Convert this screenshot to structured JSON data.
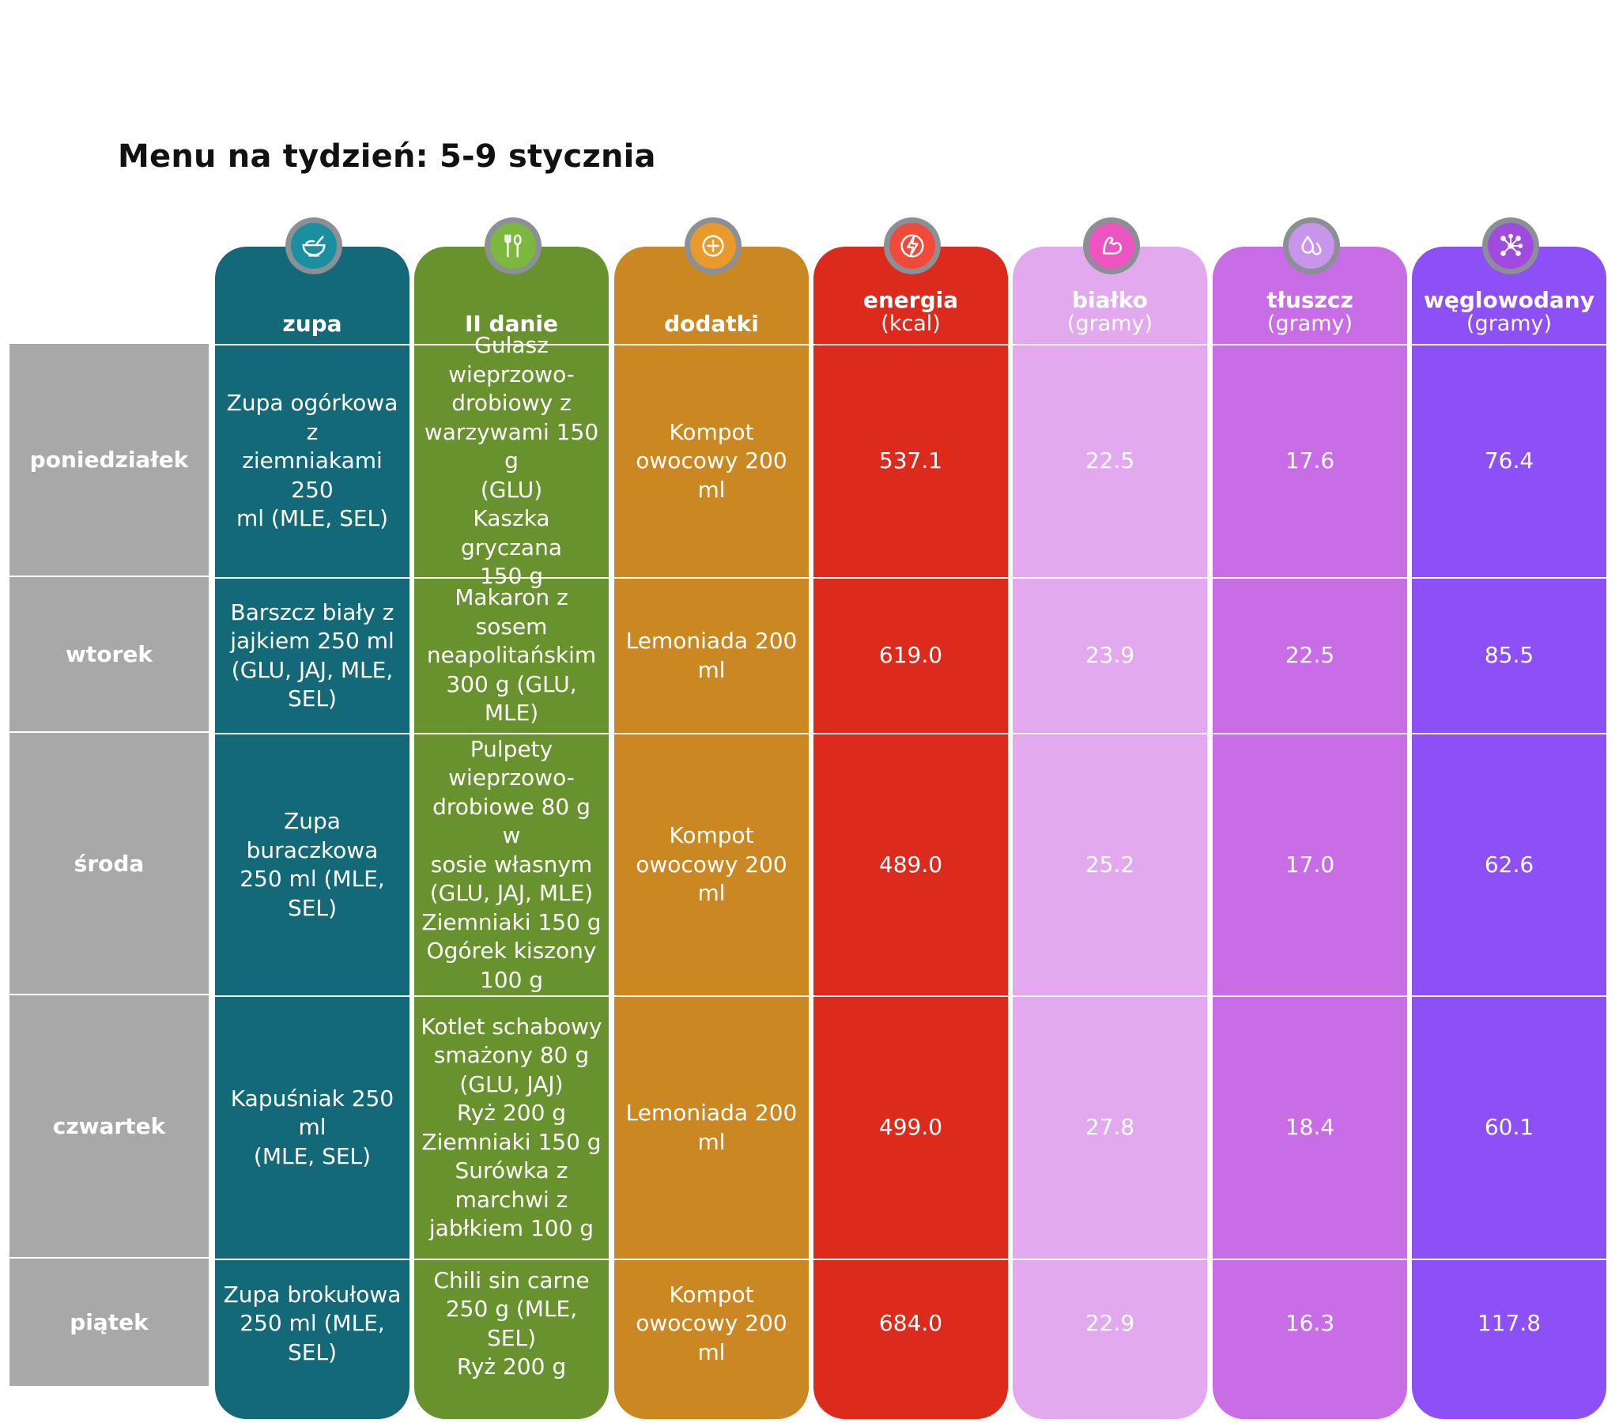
{
  "title": "Menu na tydzień: 5-9 stycznia",
  "days": [
    "poniedziałek",
    "wtorek",
    "środa",
    "czwartek",
    "piątek"
  ],
  "columns": [
    {
      "key": "zupa",
      "name": "zupa",
      "unit": "",
      "color": "#136978",
      "icon": "soup-bowl-icon",
      "icon_bg": "#1b8ea0",
      "cells": [
        "Zupa ogórkowa z\nziemniakami 250\nml (MLE, SEL)",
        "Barszcz biały z\njajkiem 250 ml\n(GLU, JAJ, MLE,\nSEL)",
        "Zupa buraczkowa\n250 ml (MLE, SEL)",
        "Kapuśniak 250 ml\n(MLE, SEL)",
        "Zupa brokułowa\n250 ml (MLE, SEL)"
      ]
    },
    {
      "key": "danie",
      "name": "II danie",
      "unit": "",
      "color": "#67922d",
      "icon": "fork-spoon-icon",
      "icon_bg": "#7db83e",
      "cells": [
        "Gulasz\nwieprzowo-\ndrobiowy z\nwarzywami 150 g\n(GLU)\nKaszka gryczana\n150 g",
        "Makaron z sosem\nneapolitańskim\n300 g (GLU, MLE)",
        "Pulpety\nwieprzowo-\ndrobiowe 80 g w\nsosie własnym\n(GLU, JAJ, MLE)\nZiemniaki 150 g\nOgórek kiszony\n100 g",
        "Kotlet schabowy\nsmażony 80 g\n(GLU, JAJ)\nRyż 200 g\nZiemniaki 150 g\nSurówka z\nmarchwi z\njabłkiem 100 g",
        "Chili sin carne\n250 g (MLE, SEL)\nRyż 200 g"
      ]
    },
    {
      "key": "dodatki",
      "name": "dodatki",
      "unit": "",
      "color": "#cb8722",
      "icon": "plus-circle-icon",
      "icon_bg": "#e89a2a",
      "cells": [
        "Kompot\nowocowy 200 ml",
        "Lemoniada 200\nml",
        "Kompot\nowocowy 200 ml",
        "Lemoniada 200\nml",
        "Kompot\nowocowy 200 ml"
      ]
    },
    {
      "key": "energia",
      "name": "energia",
      "unit": "(kcal)",
      "color": "#dc2b1c",
      "icon": "lightning-icon",
      "icon_bg": "#f04a3a",
      "cells": [
        "537.1",
        "619.0",
        "489.0",
        "499.0",
        "684.0"
      ]
    },
    {
      "key": "bialko",
      "name": "białko",
      "unit": "(gramy)",
      "color": "#e2a9ef",
      "icon": "muscle-icon",
      "icon_bg": "#ec55c0",
      "cells": [
        "22.5",
        "23.9",
        "25.2",
        "27.8",
        "22.9"
      ]
    },
    {
      "key": "tluszcz",
      "name": "tłuszcz",
      "unit": "(gramy)",
      "color": "#c86de5",
      "icon": "drops-icon",
      "icon_bg": "#c795ea",
      "cells": [
        "17.6",
        "22.5",
        "17.0",
        "18.4",
        "16.3"
      ]
    },
    {
      "key": "weglowodany",
      "name": "węglowodany",
      "unit": "(gramy)",
      "color": "#8d4ff6",
      "icon": "molecule-icon",
      "icon_bg": "#a04be0",
      "cells": [
        "76.4",
        "85.5",
        "62.6",
        "60.1",
        "117.8"
      ]
    }
  ]
}
